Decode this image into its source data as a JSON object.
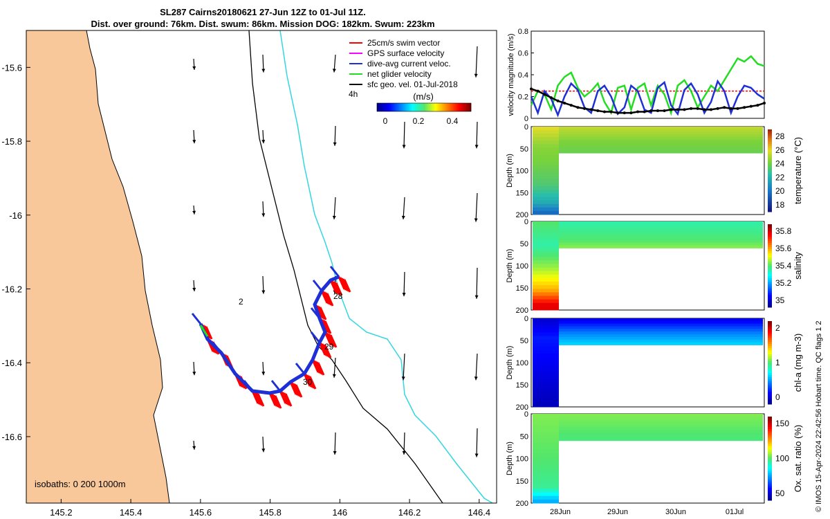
{
  "title": {
    "line1": "SL287 Cairns20180621 27-Jun 12Z to 01-Jul 11Z.",
    "line2": "Dist. over ground: 76km. Dist. swum: 86km. Mission DOG: 182km. Swum: 223km"
  },
  "colors": {
    "land": "#f8c89a",
    "isobath200": "#000000",
    "isobath1000": "#33d6e0",
    "swim": "#ff0000",
    "gps": "#ff00ff",
    "current": "#1f2fd6",
    "net": "#22dd22",
    "sfc": "#000000"
  },
  "map": {
    "legend": [
      {
        "label": "25cm/s swim vector",
        "color": "#ff0000"
      },
      {
        "label": "GPS surface velocity",
        "color": "#ff00ff"
      },
      {
        "label": "dive-avg current veloc.",
        "color": "#1f2fd6"
      },
      {
        "label": "net glider velocity",
        "color": "#22dd22"
      },
      {
        "label": "sfc geo. vel. 01-Jul-2018",
        "color": "#000000"
      }
    ],
    "interval_label": "4h",
    "colorbar_title": "(m/s)",
    "colorbar_ticks": [
      "0",
      "0.2",
      "0.4"
    ],
    "isobaths_label": "isobaths: 0   200  1000m",
    "day_labels": [
      "28",
      "29",
      "30",
      "2"
    ],
    "x_ticks": [
      "145.2",
      "145.4",
      "145.6",
      "145.8",
      "146",
      "146.2",
      "146.4"
    ],
    "y_ticks": [
      "-15.6",
      "-15.8",
      "-16",
      "-16.2",
      "-16.4",
      "-16.6"
    ]
  },
  "chart_data": [
    {
      "type": "line",
      "title": "",
      "ylabel": "velocity magnitude (m/s)",
      "ylim": [
        0,
        0.8
      ],
      "y_ticks": [
        "0",
        "0.2",
        "0.4",
        "0.6",
        "0.8"
      ],
      "x_range_days": [
        0,
        4
      ],
      "series": [
        {
          "name": "25cm/s swim vector",
          "color": "#ff0000",
          "y": [
            0.25,
            0.25
          ]
        },
        {
          "name": "net glider velocity",
          "color": "#22dd22",
          "y": [
            0.12,
            0.25,
            0.22,
            0.08,
            0.3,
            0.38,
            0.42,
            0.28,
            0.2,
            0.25,
            0.32,
            0.15,
            0.05,
            0.28,
            0.3,
            0.08,
            0.28,
            0.32,
            0.12,
            0.3,
            0.22,
            0.05,
            0.3,
            0.35,
            0.25,
            0.1,
            0.2,
            0.3,
            0.25,
            0.35,
            0.45,
            0.55,
            0.52,
            0.57,
            0.5,
            0.48
          ]
        },
        {
          "name": "dive-avg current veloc.",
          "color": "#1f2fd6",
          "y": [
            0.2,
            0.05,
            0.25,
            0.18,
            0.03,
            0.2,
            0.32,
            0.26,
            0.1,
            0.05,
            0.25,
            0.3,
            0.2,
            0.04,
            0.1,
            0.3,
            0.25,
            0.08,
            0.05,
            0.28,
            0.33,
            0.12,
            0.04,
            0.26,
            0.32,
            0.22,
            0.05,
            0.15,
            0.34,
            0.25,
            0.05,
            0.2,
            0.3,
            0.28,
            0.22,
            0.18
          ]
        },
        {
          "name": "sfc geo. vel.",
          "color": "#000000",
          "y": [
            0.27,
            0.25,
            0.22,
            0.19,
            0.16,
            0.14,
            0.12,
            0.1,
            0.09,
            0.08,
            0.07,
            0.06,
            0.06,
            0.05,
            0.05,
            0.05,
            0.06,
            0.06,
            0.07,
            0.07,
            0.07,
            0.08,
            0.08,
            0.08,
            0.09,
            0.09,
            0.08,
            0.08,
            0.09,
            0.1,
            0.09,
            0.09,
            0.1,
            0.11,
            0.12,
            0.14
          ]
        }
      ]
    },
    {
      "type": "heatmap",
      "ylabel": "Depth (m)",
      "ylim": [
        200,
        0
      ],
      "y_ticks": [
        "0",
        "50",
        "100",
        "150",
        "200"
      ],
      "colorbar_label": "temperature (°C)",
      "colorbar_ticks": [
        "18",
        "20",
        "22",
        "24",
        "26",
        "28"
      ],
      "clim": [
        17,
        28.5
      ],
      "profile": [
        {
          "depth": 0,
          "value": 25.5
        },
        {
          "depth": 40,
          "value": 24.2
        },
        {
          "depth": 80,
          "value": 23.8
        },
        {
          "depth": 130,
          "value": 23.0
        },
        {
          "depth": 170,
          "value": 21.5
        },
        {
          "depth": 190,
          "value": 19.5
        }
      ],
      "later_profile": [
        {
          "depth": 0,
          "value": 25.0
        },
        {
          "depth": 30,
          "value": 24.0
        },
        {
          "depth": 60,
          "value": 23.5
        }
      ]
    },
    {
      "type": "heatmap",
      "ylabel": "Depth (m)",
      "ylim": [
        200,
        0
      ],
      "y_ticks": [
        "0",
        "50",
        "100",
        "150",
        "200"
      ],
      "colorbar_label": "salinity",
      "colorbar_ticks": [
        "35",
        "35.2",
        "35.4",
        "35.6",
        "35.8"
      ],
      "clim": [
        34.85,
        35.85
      ],
      "profile": [
        {
          "depth": 0,
          "value": 35.35
        },
        {
          "depth": 50,
          "value": 35.3
        },
        {
          "depth": 100,
          "value": 35.4
        },
        {
          "depth": 150,
          "value": 35.55
        },
        {
          "depth": 185,
          "value": 35.75
        }
      ],
      "later_profile": [
        {
          "depth": 0,
          "value": 35.3
        },
        {
          "depth": 40,
          "value": 35.35
        },
        {
          "depth": 60,
          "value": 35.4
        }
      ]
    },
    {
      "type": "heatmap",
      "ylabel": "Depth (m)",
      "ylim": [
        200,
        0
      ],
      "y_ticks": [
        "0",
        "50",
        "100",
        "150",
        "200"
      ],
      "colorbar_label": "chl-a (mg m-3)",
      "colorbar_ticks": [
        "0",
        "1",
        "2"
      ],
      "clim": [
        0,
        2
      ],
      "profile": [
        {
          "depth": 0,
          "value": 0.15
        },
        {
          "depth": 40,
          "value": 0.3
        },
        {
          "depth": 80,
          "value": 0.25
        },
        {
          "depth": 150,
          "value": 0.15
        },
        {
          "depth": 190,
          "value": 0.1
        }
      ],
      "later_profile": [
        {
          "depth": 0,
          "value": 0.2
        },
        {
          "depth": 30,
          "value": 0.5
        },
        {
          "depth": 60,
          "value": 0.7
        }
      ]
    },
    {
      "type": "heatmap",
      "ylabel": "Depth (m)",
      "ylim": [
        200,
        0
      ],
      "y_ticks": [
        "0",
        "50",
        "100",
        "150",
        "200"
      ],
      "x_ticks": [
        "28Jun",
        "29Jun",
        "30Jun",
        "01Jul"
      ],
      "colorbar_label": "Ox. sat. ratio (%)",
      "colorbar_ticks": [
        "50",
        "100",
        "150"
      ],
      "clim": [
        25,
        175
      ],
      "profile": [
        {
          "depth": 0,
          "value": 105
        },
        {
          "depth": 100,
          "value": 100
        },
        {
          "depth": 160,
          "value": 95
        },
        {
          "depth": 190,
          "value": 70
        }
      ],
      "later_profile": [
        {
          "depth": 0,
          "value": 105
        },
        {
          "depth": 40,
          "value": 100
        },
        {
          "depth": 60,
          "value": 98
        }
      ]
    }
  ],
  "side_note": "© IMOS 15-Apr-2024 22:42:56 Hobart time. QC flags 1  2"
}
